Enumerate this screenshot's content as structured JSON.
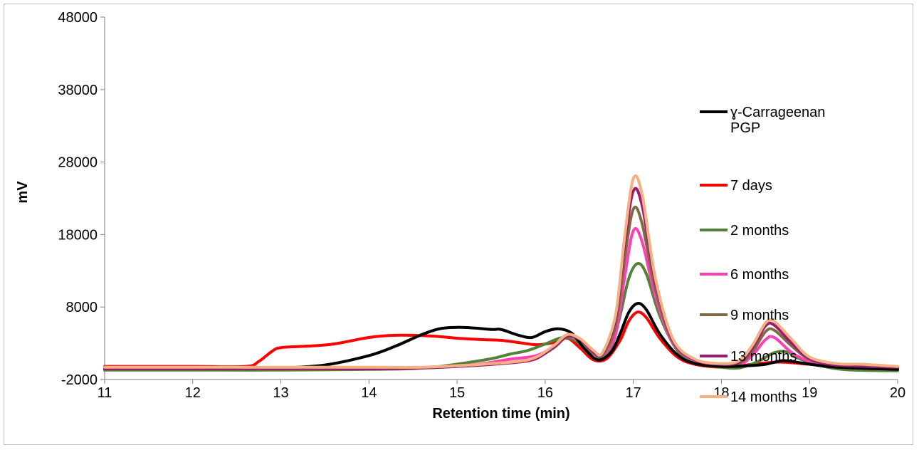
{
  "chart_data": {
    "type": "line",
    "title": "",
    "xlabel": "Retention time (min)",
    "ylabel": "mV",
    "xlim": [
      11,
      20
    ],
    "ylim": [
      -2000,
      48000
    ],
    "xticks": [
      11,
      12,
      13,
      14,
      15,
      16,
      17,
      18,
      19,
      20
    ],
    "yticks": [
      -2000,
      8000,
      18000,
      28000,
      38000,
      48000
    ],
    "grid": false,
    "legend_position": "top-right",
    "series": [
      {
        "name": "ɣ-Carrageenan PGP",
        "color": "#000000",
        "points": [
          [
            11,
            -500
          ],
          [
            12,
            -500
          ],
          [
            12.5,
            -500
          ],
          [
            13,
            -400
          ],
          [
            13.5,
            0
          ],
          [
            14,
            1300
          ],
          [
            14.3,
            2600
          ],
          [
            14.6,
            4200
          ],
          [
            14.8,
            5000
          ],
          [
            15,
            5200
          ],
          [
            15.2,
            5100
          ],
          [
            15.4,
            4900
          ],
          [
            15.5,
            4900
          ],
          [
            15.7,
            4100
          ],
          [
            15.85,
            3800
          ],
          [
            16,
            4600
          ],
          [
            16.15,
            5000
          ],
          [
            16.3,
            4400
          ],
          [
            16.45,
            2200
          ],
          [
            16.6,
            700
          ],
          [
            16.75,
            1800
          ],
          [
            16.85,
            4300
          ],
          [
            16.95,
            7300
          ],
          [
            17.05,
            8500
          ],
          [
            17.15,
            7600
          ],
          [
            17.3,
            4300
          ],
          [
            17.5,
            1400
          ],
          [
            17.7,
            200
          ],
          [
            18,
            -200
          ],
          [
            18.3,
            -100
          ],
          [
            18.5,
            100
          ],
          [
            18.7,
            600
          ],
          [
            18.9,
            300
          ],
          [
            19.2,
            -200
          ],
          [
            19.5,
            -400
          ],
          [
            20,
            -600
          ]
        ]
      },
      {
        "name": "7 days",
        "color": "#ff0000",
        "points": [
          [
            11,
            -200
          ],
          [
            12,
            -200
          ],
          [
            12.6,
            -200
          ],
          [
            12.75,
            500
          ],
          [
            12.9,
            1900
          ],
          [
            13,
            2400
          ],
          [
            13.3,
            2600
          ],
          [
            13.6,
            2900
          ],
          [
            14,
            3800
          ],
          [
            14.3,
            4100
          ],
          [
            14.7,
            4000
          ],
          [
            15,
            3700
          ],
          [
            15.3,
            3500
          ],
          [
            15.5,
            3400
          ],
          [
            15.7,
            3100
          ],
          [
            15.9,
            2800
          ],
          [
            16.1,
            3100
          ],
          [
            16.25,
            3700
          ],
          [
            16.4,
            2300
          ],
          [
            16.55,
            700
          ],
          [
            16.7,
            900
          ],
          [
            16.85,
            3400
          ],
          [
            16.95,
            6100
          ],
          [
            17.05,
            7300
          ],
          [
            17.15,
            6500
          ],
          [
            17.3,
            3700
          ],
          [
            17.5,
            1100
          ],
          [
            17.7,
            100
          ],
          [
            18,
            -300
          ],
          [
            18.2,
            -100
          ],
          [
            18.5,
            300
          ],
          [
            18.7,
            400
          ],
          [
            18.9,
            200
          ],
          [
            19.2,
            -100
          ],
          [
            19.5,
            -200
          ],
          [
            20,
            -300
          ]
        ]
      },
      {
        "name": "2 months",
        "color": "#538135",
        "points": [
          [
            11,
            -700
          ],
          [
            12,
            -700
          ],
          [
            13,
            -700
          ],
          [
            14,
            -600
          ],
          [
            14.5,
            -500
          ],
          [
            14.8,
            -200
          ],
          [
            15.1,
            300
          ],
          [
            15.4,
            900
          ],
          [
            15.6,
            1500
          ],
          [
            15.8,
            2000
          ],
          [
            16,
            2900
          ],
          [
            16.2,
            3800
          ],
          [
            16.35,
            3300
          ],
          [
            16.5,
            1500
          ],
          [
            16.6,
            800
          ],
          [
            16.75,
            2500
          ],
          [
            16.85,
            6800
          ],
          [
            16.95,
            12000
          ],
          [
            17.05,
            14000
          ],
          [
            17.15,
            12500
          ],
          [
            17.3,
            6800
          ],
          [
            17.5,
            2000
          ],
          [
            17.7,
            300
          ],
          [
            18,
            -300
          ],
          [
            18.2,
            -400
          ],
          [
            18.4,
            400
          ],
          [
            18.6,
            1700
          ],
          [
            18.75,
            1800
          ],
          [
            18.9,
            800
          ],
          [
            19.2,
            -300
          ],
          [
            19.5,
            -700
          ],
          [
            20,
            -800
          ]
        ]
      },
      {
        "name": "6 months",
        "color": "#ff3fb4",
        "points": [
          [
            11,
            -500
          ],
          [
            12,
            -500
          ],
          [
            13,
            -500
          ],
          [
            14,
            -500
          ],
          [
            14.6,
            -400
          ],
          [
            15,
            -100
          ],
          [
            15.3,
            200
          ],
          [
            15.6,
            800
          ],
          [
            15.9,
            1300
          ],
          [
            16.1,
            2600
          ],
          [
            16.25,
            3900
          ],
          [
            16.4,
            3200
          ],
          [
            16.55,
            1500
          ],
          [
            16.65,
            1200
          ],
          [
            16.8,
            4300
          ],
          [
            16.9,
            12000
          ],
          [
            17,
            18500
          ],
          [
            17.1,
            17000
          ],
          [
            17.25,
            9500
          ],
          [
            17.45,
            3000
          ],
          [
            17.7,
            600
          ],
          [
            18,
            -100
          ],
          [
            18.2,
            0
          ],
          [
            18.35,
            1300
          ],
          [
            18.5,
            3500
          ],
          [
            18.6,
            3800
          ],
          [
            18.8,
            1700
          ],
          [
            19,
            500
          ],
          [
            19.3,
            -200
          ],
          [
            20,
            -400
          ]
        ]
      },
      {
        "name": "9 months",
        "color": "#7f6b43",
        "points": [
          [
            11,
            -500
          ],
          [
            12,
            -500
          ],
          [
            13,
            -500
          ],
          [
            14,
            -500
          ],
          [
            14.6,
            -400
          ],
          [
            15,
            -200
          ],
          [
            15.4,
            100
          ],
          [
            15.7,
            500
          ],
          [
            15.9,
            1000
          ],
          [
            16.1,
            2400
          ],
          [
            16.25,
            3900
          ],
          [
            16.4,
            3400
          ],
          [
            16.55,
            1600
          ],
          [
            16.65,
            1300
          ],
          [
            16.8,
            5500
          ],
          [
            16.9,
            14500
          ],
          [
            17,
            21500
          ],
          [
            17.1,
            19500
          ],
          [
            17.25,
            10500
          ],
          [
            17.45,
            3200
          ],
          [
            17.7,
            700
          ],
          [
            18,
            0
          ],
          [
            18.2,
            200
          ],
          [
            18.35,
            1800
          ],
          [
            18.5,
            4600
          ],
          [
            18.6,
            4800
          ],
          [
            18.8,
            2600
          ],
          [
            19,
            800
          ],
          [
            19.3,
            -100
          ],
          [
            20,
            -400
          ]
        ]
      },
      {
        "name": "13 months",
        "color": "#9b1b73",
        "points": [
          [
            11,
            -500
          ],
          [
            12,
            -500
          ],
          [
            13,
            -500
          ],
          [
            14,
            -500
          ],
          [
            14.6,
            -400
          ],
          [
            15,
            -200
          ],
          [
            15.4,
            100
          ],
          [
            15.7,
            400
          ],
          [
            15.9,
            900
          ],
          [
            16.1,
            2500
          ],
          [
            16.25,
            4000
          ],
          [
            16.4,
            3500
          ],
          [
            16.55,
            1800
          ],
          [
            16.65,
            1600
          ],
          [
            16.8,
            6500
          ],
          [
            16.9,
            16500
          ],
          [
            17,
            24000
          ],
          [
            17.1,
            22000
          ],
          [
            17.25,
            11500
          ],
          [
            17.45,
            3400
          ],
          [
            17.7,
            700
          ],
          [
            18,
            100
          ],
          [
            18.2,
            400
          ],
          [
            18.35,
            2300
          ],
          [
            18.5,
            5400
          ],
          [
            18.6,
            5500
          ],
          [
            18.8,
            3000
          ],
          [
            19,
            900
          ],
          [
            19.3,
            0
          ],
          [
            20,
            -300
          ]
        ]
      },
      {
        "name": "14 months",
        "color": "#f4b183",
        "points": [
          [
            11,
            -300
          ],
          [
            12,
            -300
          ],
          [
            13,
            -300
          ],
          [
            14,
            -300
          ],
          [
            14.6,
            -300
          ],
          [
            15,
            -100
          ],
          [
            15.4,
            200
          ],
          [
            15.7,
            500
          ],
          [
            15.9,
            1100
          ],
          [
            16.1,
            2700
          ],
          [
            16.25,
            4200
          ],
          [
            16.4,
            3600
          ],
          [
            16.55,
            2000
          ],
          [
            16.65,
            1700
          ],
          [
            16.8,
            7000
          ],
          [
            16.9,
            17500
          ],
          [
            17,
            25700
          ],
          [
            17.1,
            23500
          ],
          [
            17.25,
            12000
          ],
          [
            17.45,
            3600
          ],
          [
            17.7,
            800
          ],
          [
            18,
            200
          ],
          [
            18.2,
            600
          ],
          [
            18.35,
            2700
          ],
          [
            18.5,
            5800
          ],
          [
            18.6,
            6000
          ],
          [
            18.8,
            3500
          ],
          [
            19,
            1100
          ],
          [
            19.3,
            200
          ],
          [
            19.6,
            100
          ],
          [
            20,
            -200
          ]
        ]
      }
    ]
  }
}
